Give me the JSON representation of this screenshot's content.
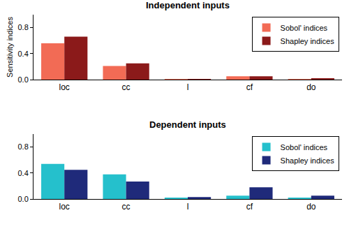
{
  "chart_data": [
    {
      "type": "bar",
      "title": "Independent inputs",
      "ylabel": "Sensitivity indices",
      "categories": [
        "loc",
        "cc",
        "l",
        "cf",
        "do"
      ],
      "series": [
        {
          "name": "Sobol' indices",
          "color": "#f26b55",
          "values": [
            0.56,
            0.21,
            0.01,
            0.05,
            0.01
          ]
        },
        {
          "name": "Shapley indices",
          "color": "#8b1a1a",
          "values": [
            0.66,
            0.25,
            0.01,
            0.05,
            0.02
          ]
        }
      ],
      "ylim": [
        0,
        1
      ],
      "yticks": [
        {
          "value": 0,
          "label": "0.0"
        },
        0.4,
        0.8
      ],
      "grid": false,
      "legend": "top right"
    },
    {
      "type": "bar",
      "title": "Dependent inputs",
      "categories": [
        "loc",
        "cc",
        "l",
        "cf",
        "do"
      ],
      "series": [
        {
          "name": "Sobol' indices",
          "color": "#25c0cc",
          "values": [
            0.54,
            0.38,
            0.02,
            0.05,
            0.02
          ]
        },
        {
          "name": "Shapley indices",
          "color": "#1f2a7a",
          "values": [
            0.45,
            0.27,
            0.03,
            0.18,
            0.05
          ]
        }
      ],
      "ylim": [
        0,
        1
      ],
      "yticks": [
        {
          "value": 0,
          "label": "0.0"
        },
        0.4,
        0.8
      ],
      "grid": false,
      "legend": "top right"
    }
  ]
}
